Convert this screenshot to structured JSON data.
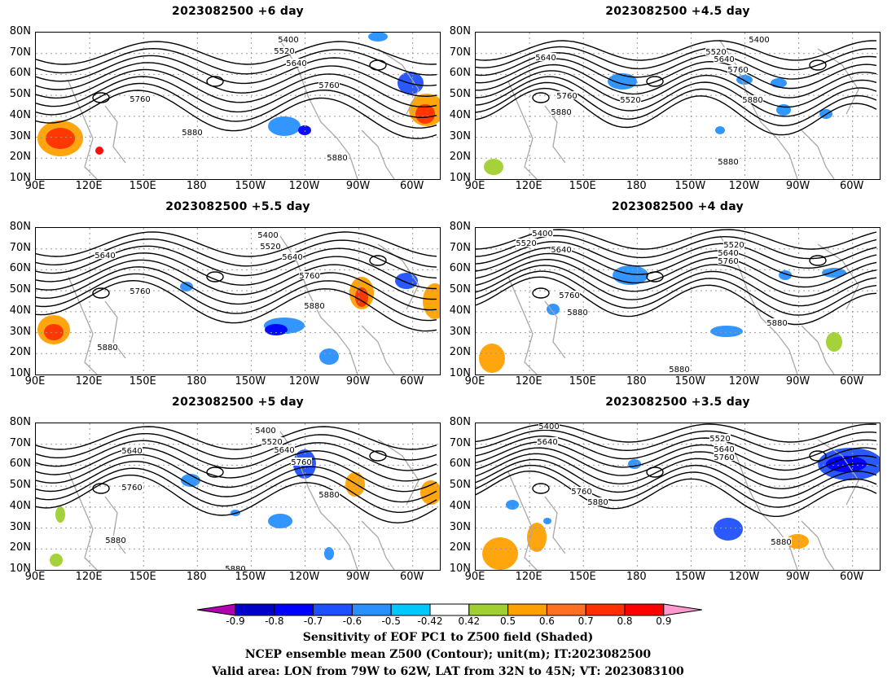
{
  "panels": [
    {
      "title": "2023082500 +6 day"
    },
    {
      "title": "2023082500 +4.5 day"
    },
    {
      "title": "2023082500 +5.5 day"
    },
    {
      "title": "2023082500 +4 day"
    },
    {
      "title": "2023082500 +5 day"
    },
    {
      "title": "2023082500 +3.5 day"
    }
  ],
  "lat_ticks": [
    "80N",
    "70N",
    "60N",
    "50N",
    "40N",
    "30N",
    "20N",
    "10N"
  ],
  "lon_ticks": [
    "90E",
    "120E",
    "150E",
    "180",
    "150W",
    "120W",
    "90W",
    "60W"
  ],
  "contour_labels": [
    "5400",
    "5520",
    "5640",
    "5760",
    "5880"
  ],
  "colorbar": {
    "labels": [
      "-0.9",
      "-0.8",
      "-0.7",
      "-0.6",
      "-0.5",
      "-0.42",
      "0.42",
      "0.5",
      "0.6",
      "0.7",
      "0.8",
      "0.9"
    ],
    "colors": [
      "#b000b0",
      "#0000c8",
      "#0000ff",
      "#1e50ff",
      "#2890ff",
      "#00c8ff",
      "#ffffff",
      "#a0d030",
      "#ffa000",
      "#ff7020",
      "#ff3000",
      "#ff0000",
      "#ff9ad0"
    ]
  },
  "caption": {
    "line1": "Sensitivity of EOF PC1 to Z500 field (Shaded)",
    "line2": "NCEP ensemble mean Z500 (Contour); unit(m); IT:2023082500",
    "line3": "Valid area: LON from 79W to 62W, LAT from 32N to 45N; VT: 2023083100"
  }
}
